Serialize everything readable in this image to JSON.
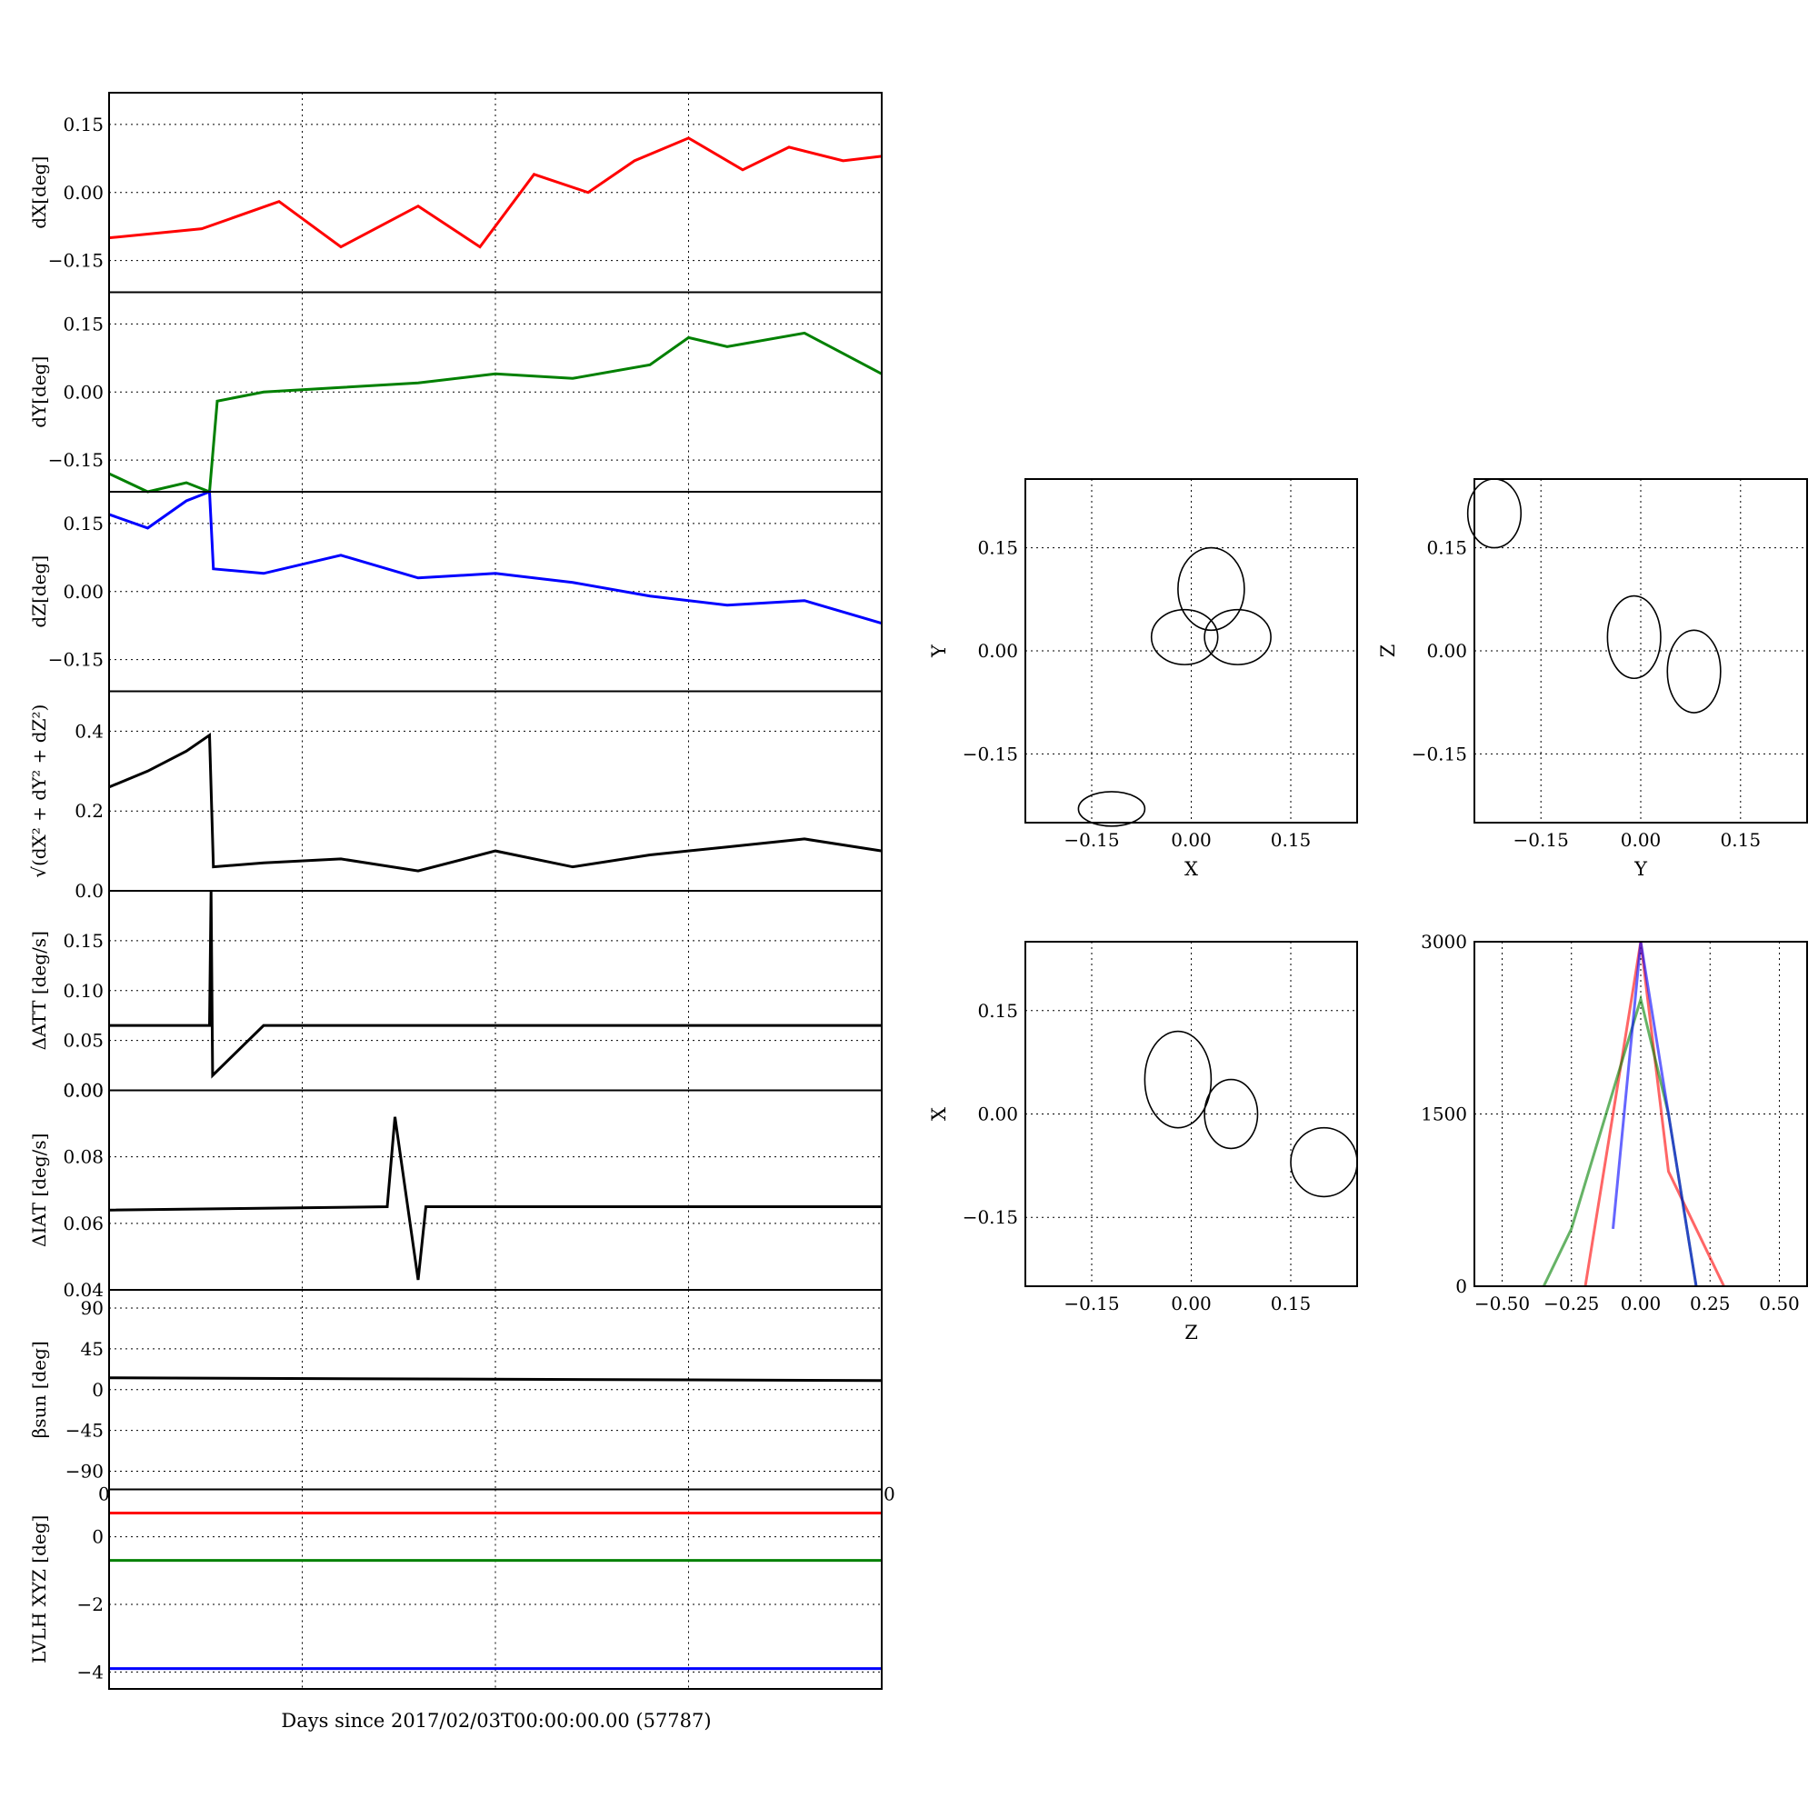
{
  "figure": {
    "xlabel": "Days since 2017/02/03T00:00:00.00 (57787)"
  },
  "chart_data": [
    {
      "id": "dx",
      "type": "line",
      "ylabel": "dX[deg]",
      "ylim": [
        -0.22,
        0.22
      ],
      "yticks": [
        -0.15,
        0.0,
        0.15
      ],
      "ytick_labels": [
        "−0.15",
        "0.00",
        "0.15"
      ],
      "grid": true,
      "series": [
        {
          "color": "#ff0000",
          "x": [
            0.0,
            0.12,
            0.22,
            0.3,
            0.4,
            0.48,
            0.55,
            0.62,
            0.68,
            0.75,
            0.82,
            0.88,
            0.95,
            1.0
          ],
          "values": [
            -0.1,
            -0.08,
            -0.02,
            -0.12,
            -0.03,
            -0.12,
            0.04,
            0.0,
            0.07,
            0.12,
            0.05,
            0.1,
            0.07,
            0.08
          ]
        }
      ]
    },
    {
      "id": "dy",
      "type": "line",
      "ylabel": "dY[deg]",
      "ylim": [
        -0.22,
        0.22
      ],
      "yticks": [
        -0.15,
        0.0,
        0.15
      ],
      "ytick_labels": [
        "−0.15",
        "0.00",
        "0.15"
      ],
      "grid": true,
      "series": [
        {
          "color": "#008000",
          "x": [
            0.0,
            0.05,
            0.1,
            0.13,
            0.14,
            0.2,
            0.3,
            0.4,
            0.5,
            0.6,
            0.7,
            0.75,
            0.8,
            0.9,
            1.0
          ],
          "values": [
            -0.18,
            -0.22,
            -0.2,
            -0.22,
            -0.02,
            0.0,
            0.01,
            0.02,
            0.04,
            0.03,
            0.06,
            0.12,
            0.1,
            0.13,
            0.04
          ]
        }
      ]
    },
    {
      "id": "dz",
      "type": "line",
      "ylabel": "dZ[deg]",
      "ylim": [
        -0.22,
        0.22
      ],
      "yticks": [
        -0.15,
        0.0,
        0.15
      ],
      "ytick_labels": [
        "−0.15",
        "0.00",
        "0.15"
      ],
      "grid": true,
      "series": [
        {
          "color": "#0000ff",
          "x": [
            0.0,
            0.05,
            0.1,
            0.13,
            0.135,
            0.2,
            0.3,
            0.4,
            0.5,
            0.6,
            0.7,
            0.8,
            0.9,
            1.0
          ],
          "values": [
            0.17,
            0.14,
            0.2,
            0.22,
            0.05,
            0.04,
            0.08,
            0.03,
            0.04,
            0.02,
            -0.01,
            -0.03,
            -0.02,
            -0.07
          ]
        }
      ]
    },
    {
      "id": "norm",
      "type": "line",
      "ylabel": "√(dX² + dY² + dZ²)",
      "ylim": [
        0.0,
        0.5
      ],
      "yticks": [
        0.0,
        0.2,
        0.4
      ],
      "ytick_labels": [
        "0.0",
        "0.2",
        "0.4"
      ],
      "grid": true,
      "series": [
        {
          "color": "#000000",
          "x": [
            0.0,
            0.05,
            0.1,
            0.13,
            0.135,
            0.2,
            0.3,
            0.4,
            0.5,
            0.6,
            0.7,
            0.8,
            0.9,
            1.0
          ],
          "values": [
            0.26,
            0.3,
            0.35,
            0.39,
            0.06,
            0.07,
            0.08,
            0.05,
            0.1,
            0.06,
            0.09,
            0.11,
            0.13,
            0.1
          ]
        }
      ]
    },
    {
      "id": "datt",
      "type": "line",
      "ylabel": "ΔATT [deg/s]",
      "ylim": [
        0.0,
        0.2
      ],
      "yticks": [
        0.0,
        0.05,
        0.1,
        0.15
      ],
      "ytick_labels": [
        "0.00",
        "0.05",
        "0.10",
        "0.15"
      ],
      "grid": true,
      "series": [
        {
          "color": "#000000",
          "x": [
            0.0,
            0.13,
            0.132,
            0.134,
            0.2,
            1.0
          ],
          "values": [
            0.065,
            0.065,
            0.2,
            0.015,
            0.065,
            0.065
          ]
        }
      ]
    },
    {
      "id": "diat",
      "type": "line",
      "ylabel": "ΔIAT [deg/s]",
      "ylim": [
        0.04,
        0.1
      ],
      "yticks": [
        0.04,
        0.06,
        0.08
      ],
      "ytick_labels": [
        "0.04",
        "0.06",
        "0.08"
      ],
      "extra_tick_label": "0.00",
      "grid": true,
      "series": [
        {
          "color": "#000000",
          "x": [
            0.0,
            0.36,
            0.37,
            0.4,
            0.41,
            1.0
          ],
          "values": [
            0.064,
            0.065,
            0.092,
            0.043,
            0.065,
            0.065
          ]
        }
      ]
    },
    {
      "id": "beta",
      "type": "line",
      "ylabel": "βsun [deg]",
      "ylim": [
        -110,
        110
      ],
      "yticks": [
        -90,
        -45,
        0,
        45,
        90
      ],
      "ytick_labels": [
        "−90",
        "−45",
        "0",
        "45",
        "90"
      ],
      "grid": true,
      "series": [
        {
          "color": "#000000",
          "x": [
            0.0,
            1.0
          ],
          "values": [
            13,
            10
          ]
        }
      ]
    },
    {
      "id": "lvlh",
      "type": "line",
      "ylabel": "LVLH XYZ [deg]",
      "ylim": [
        -4.5,
        1.4
      ],
      "yticks": [
        -4,
        -2,
        0
      ],
      "ytick_labels": [
        "−4",
        "−2",
        "0"
      ],
      "corner_labels": [
        "0",
        "0"
      ],
      "grid": true,
      "series": [
        {
          "color": "#ff0000",
          "x": [
            0.0,
            1.0
          ],
          "values": [
            0.7,
            0.7
          ]
        },
        {
          "color": "#008000",
          "x": [
            0.0,
            1.0
          ],
          "values": [
            -0.7,
            -0.7
          ]
        },
        {
          "color": "#0000ff",
          "x": [
            0.0,
            1.0
          ],
          "values": [
            -3.9,
            -3.9
          ]
        }
      ]
    },
    {
      "id": "xy",
      "type": "scatter",
      "xlabel": "X",
      "ylabel": "Y",
      "xlim": [
        -0.25,
        0.25
      ],
      "ylim": [
        -0.25,
        0.25
      ],
      "xticks": [
        -0.15,
        0.0,
        0.15
      ],
      "yticks": [
        -0.15,
        0.0,
        0.15
      ],
      "xtick_labels": [
        "−0.15",
        "0.00",
        "0.15"
      ],
      "ytick_labels": [
        "−0.15",
        "0.00",
        "0.15"
      ],
      "grid": true,
      "loops": [
        {
          "cx": 0.03,
          "cy": 0.09,
          "rx": 0.05,
          "ry": 0.06
        },
        {
          "cx": 0.07,
          "cy": 0.02,
          "rx": 0.05,
          "ry": 0.04
        },
        {
          "cx": -0.01,
          "cy": 0.02,
          "rx": 0.05,
          "ry": 0.04
        },
        {
          "cx": -0.12,
          "cy": -0.23,
          "rx": 0.05,
          "ry": 0.025
        }
      ]
    },
    {
      "id": "yz",
      "type": "scatter",
      "xlabel": "Y",
      "ylabel": "Z",
      "xlim": [
        -0.25,
        0.25
      ],
      "ylim": [
        -0.25,
        0.25
      ],
      "xticks": [
        -0.15,
        0.0,
        0.15
      ],
      "yticks": [
        -0.15,
        0.0,
        0.15
      ],
      "xtick_labels": [
        "−0.15",
        "0.00",
        "0.15"
      ],
      "ytick_labels": [
        "−0.15",
        "0.00",
        "0.15"
      ],
      "grid": true,
      "loops": [
        {
          "cx": -0.01,
          "cy": 0.02,
          "rx": 0.04,
          "ry": 0.06
        },
        {
          "cx": 0.08,
          "cy": -0.03,
          "rx": 0.04,
          "ry": 0.06
        },
        {
          "cx": -0.22,
          "cy": 0.2,
          "rx": 0.04,
          "ry": 0.05
        }
      ]
    },
    {
      "id": "zx",
      "type": "scatter",
      "xlabel": "Z",
      "ylabel": "X",
      "xlim": [
        -0.25,
        0.25
      ],
      "ylim": [
        -0.25,
        0.25
      ],
      "xticks": [
        -0.15,
        0.0,
        0.15
      ],
      "yticks": [
        -0.15,
        0.0,
        0.15
      ],
      "xtick_labels": [
        "−0.15",
        "0.00",
        "0.15"
      ],
      "ytick_labels": [
        "−0.15",
        "0.00",
        "0.15"
      ],
      "grid": true,
      "loops": [
        {
          "cx": -0.02,
          "cy": 0.05,
          "rx": 0.05,
          "ry": 0.07
        },
        {
          "cx": 0.06,
          "cy": 0.0,
          "rx": 0.04,
          "ry": 0.05
        },
        {
          "cx": 0.2,
          "cy": -0.07,
          "rx": 0.05,
          "ry": 0.05
        }
      ]
    },
    {
      "id": "hist",
      "type": "bar",
      "xlim": [
        -0.6,
        0.6
      ],
      "ylim": [
        0,
        3000
      ],
      "xticks": [
        -0.5,
        -0.25,
        0.0,
        0.25,
        0.5
      ],
      "xtick_labels": [
        "−0.50",
        "−0.25",
        "0.00",
        "0.25",
        "0.50"
      ],
      "yticks": [
        0,
        1500,
        3000
      ],
      "ytick_labels": [
        "0",
        "1500",
        "3000"
      ],
      "grid": true,
      "series": [
        {
          "color": "#ff0000",
          "x": [
            -0.2,
            -0.1,
            0.0,
            0.1,
            0.2,
            0.3
          ],
          "values": [
            0,
            1500,
            3000,
            1000,
            500,
            0
          ]
        },
        {
          "color": "#008000",
          "x": [
            -0.35,
            -0.25,
            0.0,
            0.1,
            0.2
          ],
          "values": [
            0,
            500,
            2500,
            1500,
            0
          ]
        },
        {
          "color": "#0000ff",
          "x": [
            -0.1,
            0.0,
            0.1,
            0.2
          ],
          "values": [
            500,
            3000,
            1500,
            0
          ]
        }
      ]
    }
  ]
}
